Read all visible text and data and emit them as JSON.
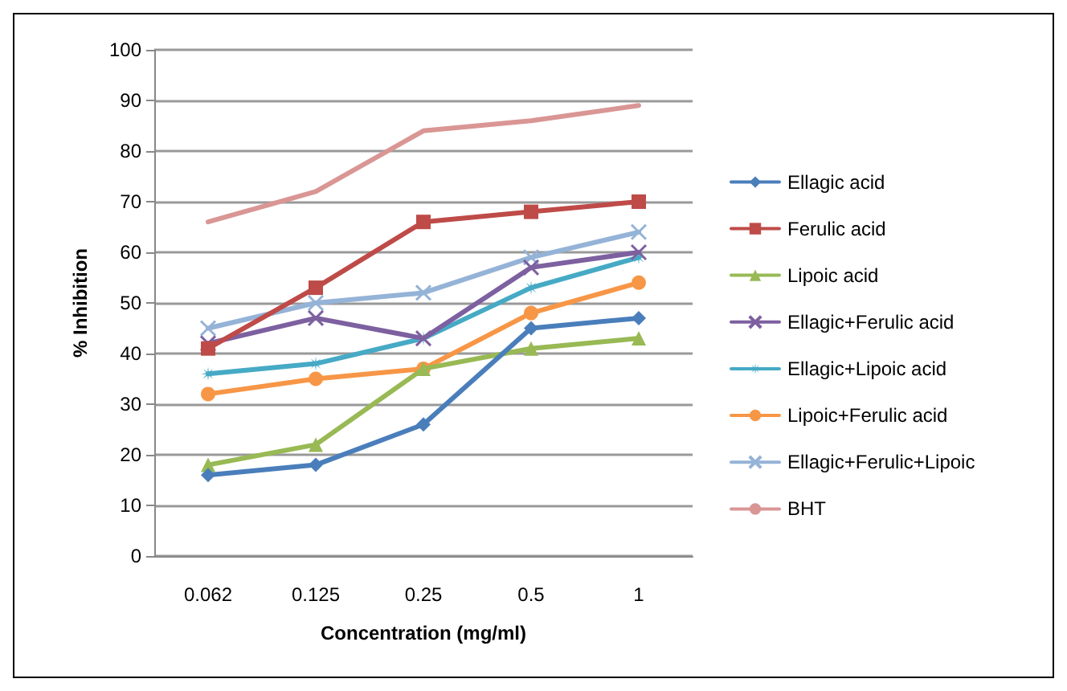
{
  "chart_data": {
    "type": "line",
    "xlabel": "Concentration (mg/ml)",
    "ylabel": "% Inhibition",
    "categories": [
      "0.062",
      "0.125",
      "0.25",
      "0.5",
      "1"
    ],
    "ylim": [
      0,
      100
    ],
    "yticks": [
      0,
      10,
      20,
      30,
      40,
      50,
      60,
      70,
      80,
      90,
      100
    ],
    "grid": "y",
    "legend": "right",
    "line_style": "solid",
    "series": [
      {
        "name": "Ellagic acid",
        "color": "#4a7ebb",
        "marker": "diamond",
        "values": [
          16,
          18,
          26,
          45,
          47
        ]
      },
      {
        "name": "Ferulic acid",
        "color": "#be4b48",
        "marker": "square",
        "values": [
          41,
          53,
          66,
          68,
          70
        ]
      },
      {
        "name": "Lipoic acid",
        "color": "#98b954",
        "marker": "triangle",
        "values": [
          18,
          22,
          37,
          41,
          43
        ]
      },
      {
        "name": "Ellagic+Ferulic acid",
        "color": "#7d60a0",
        "marker": "cross",
        "values": [
          42,
          47,
          43,
          57,
          60
        ]
      },
      {
        "name": "Ellagic+Lipoic acid",
        "color": "#46aac5",
        "marker": "star",
        "values": [
          36,
          38,
          43,
          53,
          59
        ]
      },
      {
        "name": "Lipoic+Ferulic acid",
        "color": "#f79646",
        "marker": "circle",
        "values": [
          32,
          35,
          37,
          48,
          54
        ]
      },
      {
        "name": "Ellagic+Ferulic+Lipoic",
        "color": "#95b3d7",
        "marker": "cross",
        "values": [
          45,
          50,
          52,
          59,
          64
        ]
      },
      {
        "name": "BHT",
        "color": "#d99694",
        "marker": "none",
        "values": [
          66,
          72,
          84,
          86,
          89
        ]
      }
    ]
  }
}
